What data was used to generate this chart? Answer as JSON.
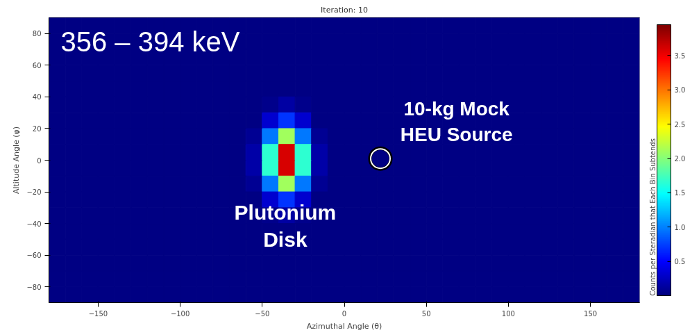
{
  "chart_data": {
    "type": "heatmap",
    "title": "Iteration: 10",
    "xlabel": "Azimuthal Angle (θ)",
    "ylabel": "Altitude Angle (φ)",
    "clabel": "Counts per Steradian that Each Bin Subtends",
    "xlim": [
      -180,
      180
    ],
    "ylim": [
      -90,
      90
    ],
    "xticks": [
      -150,
      -100,
      -50,
      0,
      50,
      100,
      150
    ],
    "yticks": [
      -80,
      -60,
      -40,
      -20,
      0,
      20,
      40,
      60,
      80
    ],
    "clim": [
      0,
      3.95
    ],
    "cticks": [
      0.5,
      {
        "value": 1,
        "label": "1.0"
      },
      1.5,
      {
        "value": 2,
        "label": "2.0"
      },
      2.5,
      {
        "value": 3,
        "label": "3.0"
      },
      3.5
    ],
    "x": [
      -175,
      -165,
      -155,
      -145,
      -135,
      -125,
      -115,
      -105,
      -95,
      -85,
      -75,
      -65,
      -55,
      -45,
      -35,
      -25,
      -15,
      -5,
      5,
      15,
      25,
      35,
      45,
      55,
      65,
      75,
      85,
      95,
      105,
      115,
      125,
      135,
      145,
      155,
      165,
      175
    ],
    "y": [
      85,
      75,
      65,
      55,
      45,
      35,
      25,
      15,
      5,
      -5,
      -15,
      -25,
      -35,
      -45,
      -55,
      -65,
      -75,
      -85
    ],
    "cells": [
      [
        0.02,
        0.02,
        0.02,
        0.02,
        0.02,
        0.02,
        0.02,
        0.02,
        0.02,
        0.02,
        0.02,
        0.02,
        0.02,
        0.02,
        0.02,
        0.02,
        0.02,
        0.02,
        0.02,
        0.02,
        0.02,
        0.02,
        0.02,
        0.02,
        0.02,
        0.02,
        0.02,
        0.02,
        0.02,
        0.02,
        0.02,
        0.02,
        0.02,
        0.02,
        0.02,
        0.02
      ],
      [
        0.02,
        0.02,
        0.02,
        0.02,
        0.02,
        0.02,
        0.02,
        0.02,
        0.02,
        0.02,
        0.02,
        0.02,
        0.02,
        0.02,
        0.02,
        0.02,
        0.02,
        0.02,
        0.02,
        0.02,
        0.02,
        0.02,
        0.02,
        0.02,
        0.02,
        0.02,
        0.02,
        0.02,
        0.02,
        0.02,
        0.02,
        0.02,
        0.02,
        0.02,
        0.02,
        0.02
      ],
      [
        0.02,
        0.02,
        0.02,
        0.02,
        0.02,
        0.02,
        0.02,
        0.02,
        0.02,
        0.02,
        0.02,
        0.02,
        0.02,
        0.02,
        0.02,
        0.02,
        0.02,
        0.02,
        0.02,
        0.02,
        0.02,
        0.02,
        0.02,
        0.02,
        0.02,
        0.02,
        0.02,
        0.02,
        0.02,
        0.02,
        0.02,
        0.02,
        0.02,
        0.02,
        0.02,
        0.02
      ],
      [
        0.02,
        0.02,
        0.02,
        0.02,
        0.02,
        0.02,
        0.02,
        0.02,
        0.02,
        0.02,
        0.02,
        0.02,
        0.02,
        0.02,
        0.02,
        0.02,
        0.02,
        0.02,
        0.02,
        0.02,
        0.02,
        0.02,
        0.02,
        0.02,
        0.02,
        0.02,
        0.02,
        0.02,
        0.02,
        0.02,
        0.02,
        0.02,
        0.02,
        0.02,
        0.02,
        0.02
      ],
      [
        0.02,
        0.02,
        0.02,
        0.02,
        0.02,
        0.02,
        0.02,
        0.02,
        0.02,
        0.02,
        0.02,
        0.02,
        0.02,
        0.02,
        0.02,
        0.02,
        0.02,
        0.02,
        0.02,
        0.02,
        0.02,
        0.02,
        0.02,
        0.02,
        0.02,
        0.02,
        0.02,
        0.02,
        0.02,
        0.02,
        0.02,
        0.02,
        0.02,
        0.02,
        0.02,
        0.02
      ],
      [
        0.02,
        0.02,
        0.02,
        0.02,
        0.02,
        0.02,
        0.02,
        0.02,
        0.02,
        0.02,
        0.02,
        0.02,
        0.02,
        0.06,
        0.14,
        0.06,
        0.02,
        0.02,
        0.02,
        0.02,
        0.02,
        0.02,
        0.02,
        0.02,
        0.02,
        0.02,
        0.02,
        0.02,
        0.02,
        0.02,
        0.02,
        0.02,
        0.02,
        0.02,
        0.02,
        0.02
      ],
      [
        0.02,
        0.02,
        0.02,
        0.02,
        0.02,
        0.02,
        0.02,
        0.02,
        0.02,
        0.02,
        0.02,
        0.02,
        0.03,
        0.32,
        0.7,
        0.32,
        0.03,
        0.02,
        0.02,
        0.02,
        0.02,
        0.02,
        0.02,
        0.02,
        0.02,
        0.02,
        0.02,
        0.02,
        0.02,
        0.02,
        0.02,
        0.02,
        0.02,
        0.02,
        0.02,
        0.02
      ],
      [
        0.02,
        0.02,
        0.02,
        0.02,
        0.02,
        0.02,
        0.02,
        0.02,
        0.02,
        0.02,
        0.02,
        0.02,
        0.09,
        0.97,
        2.1,
        0.97,
        0.09,
        0.02,
        0.02,
        0.02,
        0.02,
        0.02,
        0.02,
        0.02,
        0.02,
        0.02,
        0.02,
        0.02,
        0.02,
        0.02,
        0.02,
        0.02,
        0.02,
        0.02,
        0.02,
        0.02
      ],
      [
        0.02,
        0.02,
        0.02,
        0.02,
        0.02,
        0.02,
        0.02,
        0.02,
        0.02,
        0.02,
        0.02,
        0.02,
        0.16,
        1.66,
        3.6,
        1.66,
        0.16,
        0.02,
        0.02,
        0.02,
        0.02,
        0.02,
        0.02,
        0.02,
        0.02,
        0.02,
        0.02,
        0.02,
        0.02,
        0.02,
        0.02,
        0.02,
        0.02,
        0.02,
        0.02,
        0.02
      ],
      [
        0.02,
        0.02,
        0.02,
        0.02,
        0.02,
        0.02,
        0.02,
        0.02,
        0.02,
        0.02,
        0.02,
        0.02,
        0.16,
        1.66,
        3.6,
        1.66,
        0.16,
        0.02,
        0.02,
        0.02,
        0.02,
        0.02,
        0.02,
        0.02,
        0.02,
        0.02,
        0.02,
        0.02,
        0.02,
        0.02,
        0.02,
        0.02,
        0.02,
        0.02,
        0.02,
        0.02
      ],
      [
        0.02,
        0.02,
        0.02,
        0.02,
        0.02,
        0.02,
        0.02,
        0.02,
        0.02,
        0.02,
        0.02,
        0.02,
        0.09,
        0.97,
        2.1,
        0.97,
        0.09,
        0.02,
        0.02,
        0.02,
        0.02,
        0.02,
        0.02,
        0.02,
        0.02,
        0.02,
        0.02,
        0.02,
        0.02,
        0.02,
        0.02,
        0.02,
        0.02,
        0.02,
        0.02,
        0.02
      ],
      [
        0.02,
        0.02,
        0.02,
        0.02,
        0.02,
        0.02,
        0.02,
        0.02,
        0.02,
        0.02,
        0.02,
        0.02,
        0.03,
        0.32,
        0.7,
        0.32,
        0.03,
        0.02,
        0.02,
        0.02,
        0.02,
        0.02,
        0.02,
        0.02,
        0.02,
        0.02,
        0.02,
        0.02,
        0.02,
        0.02,
        0.02,
        0.02,
        0.02,
        0.02,
        0.02,
        0.02
      ],
      [
        0.02,
        0.02,
        0.02,
        0.02,
        0.02,
        0.02,
        0.02,
        0.02,
        0.02,
        0.02,
        0.02,
        0.02,
        0.02,
        0.06,
        0.14,
        0.06,
        0.02,
        0.02,
        0.02,
        0.02,
        0.02,
        0.02,
        0.02,
        0.02,
        0.02,
        0.02,
        0.02,
        0.02,
        0.02,
        0.02,
        0.02,
        0.02,
        0.02,
        0.02,
        0.02,
        0.02
      ],
      [
        0.02,
        0.02,
        0.02,
        0.02,
        0.02,
        0.02,
        0.02,
        0.02,
        0.02,
        0.02,
        0.02,
        0.02,
        0.02,
        0.02,
        0.02,
        0.02,
        0.02,
        0.02,
        0.02,
        0.02,
        0.02,
        0.02,
        0.02,
        0.02,
        0.02,
        0.02,
        0.02,
        0.02,
        0.02,
        0.02,
        0.02,
        0.02,
        0.02,
        0.02,
        0.02,
        0.02
      ],
      [
        0.02,
        0.02,
        0.02,
        0.02,
        0.02,
        0.02,
        0.02,
        0.02,
        0.02,
        0.02,
        0.02,
        0.02,
        0.02,
        0.02,
        0.02,
        0.02,
        0.02,
        0.02,
        0.02,
        0.02,
        0.02,
        0.02,
        0.02,
        0.02,
        0.02,
        0.02,
        0.02,
        0.02,
        0.02,
        0.02,
        0.02,
        0.02,
        0.02,
        0.02,
        0.02,
        0.02
      ],
      [
        0.02,
        0.02,
        0.02,
        0.02,
        0.02,
        0.02,
        0.02,
        0.02,
        0.02,
        0.02,
        0.02,
        0.02,
        0.02,
        0.02,
        0.02,
        0.02,
        0.02,
        0.02,
        0.02,
        0.02,
        0.02,
        0.02,
        0.02,
        0.02,
        0.02,
        0.02,
        0.02,
        0.02,
        0.02,
        0.02,
        0.02,
        0.02,
        0.02,
        0.02,
        0.02,
        0.02
      ],
      [
        0.02,
        0.02,
        0.02,
        0.02,
        0.02,
        0.02,
        0.02,
        0.02,
        0.02,
        0.02,
        0.02,
        0.02,
        0.02,
        0.02,
        0.02,
        0.02,
        0.02,
        0.02,
        0.02,
        0.02,
        0.02,
        0.02,
        0.02,
        0.02,
        0.02,
        0.02,
        0.02,
        0.02,
        0.02,
        0.02,
        0.02,
        0.02,
        0.02,
        0.02,
        0.02,
        0.02
      ],
      [
        0.02,
        0.02,
        0.02,
        0.02,
        0.02,
        0.02,
        0.02,
        0.02,
        0.02,
        0.02,
        0.02,
        0.02,
        0.02,
        0.02,
        0.02,
        0.02,
        0.02,
        0.02,
        0.02,
        0.02,
        0.02,
        0.02,
        0.02,
        0.02,
        0.02,
        0.02,
        0.02,
        0.02,
        0.02,
        0.02,
        0.02,
        0.02,
        0.02,
        0.02,
        0.02,
        0.02
      ]
    ],
    "series": [
      {
        "type": "scatter",
        "x": [
          22
        ],
        "values": [
          1
        ],
        "color": "#ffffff",
        "marker": "circle"
      }
    ],
    "annotations": [
      "356 – 394 keV",
      "Plutonium\nDisk",
      "10-kg Mock\nHEU Source"
    ]
  }
}
